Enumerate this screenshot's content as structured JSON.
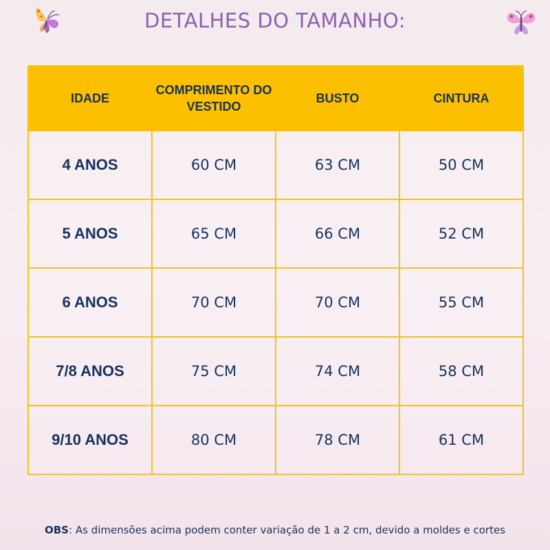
{
  "title": "DETALHES DO TAMANHO:",
  "icons": {
    "left": "butterfly-icon",
    "right": "butterfly-icon"
  },
  "colors": {
    "header_bg": "#fdc000",
    "text": "#16325c",
    "title": "#8e5fb0",
    "border": "#f5c21a"
  },
  "table": {
    "headers": [
      "IDADE",
      "COMPRIMENTO DO VESTIDO",
      "BUSTO",
      "CINTURA"
    ],
    "rows": [
      [
        "4 ANOS",
        "60 CM",
        "63 CM",
        "50 CM"
      ],
      [
        "5 ANOS",
        "65 CM",
        "66 CM",
        "52 CM"
      ],
      [
        "6 ANOS",
        "70 CM",
        "70 CM",
        "55 CM"
      ],
      [
        "7/8 ANOS",
        "75 CM",
        "74 CM",
        "58 CM"
      ],
      [
        "9/10 ANOS",
        "80 CM",
        "78 CM",
        "61 CM"
      ]
    ]
  },
  "note": {
    "label": "OBS",
    "text": ": As dimensões acima podem conter variação de 1 a 2 cm, devido a moldes e cortes"
  }
}
